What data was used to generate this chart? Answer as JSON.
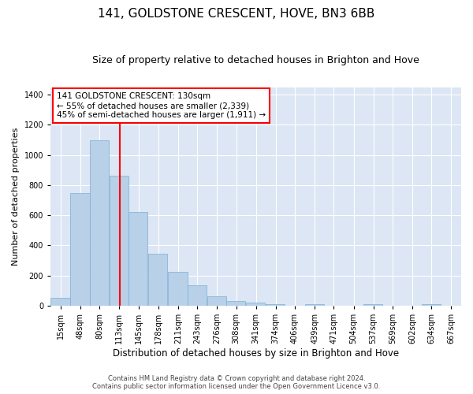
{
  "title": "141, GOLDSTONE CRESCENT, HOVE, BN3 6BB",
  "subtitle": "Size of property relative to detached houses in Brighton and Hove",
  "xlabel": "Distribution of detached houses by size in Brighton and Hove",
  "ylabel": "Number of detached properties",
  "footnote1": "Contains HM Land Registry data © Crown copyright and database right 2024.",
  "footnote2": "Contains public sector information licensed under the Open Government Licence v3.0.",
  "bar_labels": [
    "15sqm",
    "48sqm",
    "80sqm",
    "113sqm",
    "145sqm",
    "178sqm",
    "211sqm",
    "243sqm",
    "276sqm",
    "308sqm",
    "341sqm",
    "374sqm",
    "406sqm",
    "439sqm",
    "471sqm",
    "504sqm",
    "537sqm",
    "569sqm",
    "602sqm",
    "634sqm",
    "667sqm"
  ],
  "bar_heights": [
    50,
    750,
    1100,
    865,
    620,
    345,
    225,
    135,
    65,
    30,
    20,
    13,
    0,
    12,
    0,
    0,
    13,
    0,
    0,
    13,
    0
  ],
  "bar_color": "#b8d0e8",
  "bar_edge_color": "#7aafd4",
  "vline_x": 130,
  "vline_color": "red",
  "annotation_text": "141 GOLDSTONE CRESCENT: 130sqm\n← 55% of detached houses are smaller (2,339)\n45% of semi-detached houses are larger (1,911) →",
  "annotation_box_color": "white",
  "annotation_box_edge": "red",
  "ylim": [
    0,
    1450
  ],
  "plot_background": "#dce6f5",
  "grid_color": "white",
  "title_fontsize": 11,
  "subtitle_fontsize": 9,
  "ylabel_fontsize": 8,
  "xlabel_fontsize": 8.5,
  "tick_fontsize": 7,
  "annot_fontsize": 7.5
}
